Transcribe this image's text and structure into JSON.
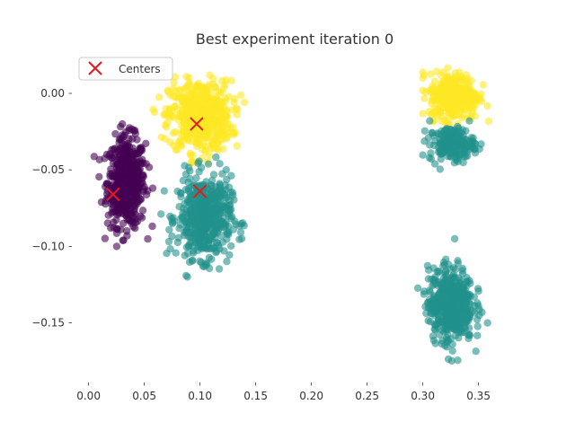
{
  "chart_data": {
    "type": "scatter",
    "title": "Best experiment iteration 0",
    "xlabel": "",
    "ylabel": "",
    "xlim": [
      -0.015,
      0.385
    ],
    "ylim": [
      -0.189,
      0.027
    ],
    "x_ticks": [
      0.0,
      0.05,
      0.1,
      0.15,
      0.2,
      0.25,
      0.3,
      0.35
    ],
    "x_tick_labels": [
      "0.00",
      "0.05",
      "0.10",
      "0.15",
      "0.20",
      "0.25",
      "0.30",
      "0.35"
    ],
    "y_ticks": [
      0.0,
      -0.05,
      -0.1,
      -0.15
    ],
    "y_tick_labels": [
      "0.00",
      "−0.05",
      "−0.10",
      "−0.15"
    ],
    "grid": false,
    "legend": {
      "placement": "top-left",
      "entries": [
        "Centers"
      ]
    },
    "clusters": [
      {
        "color": "#440154",
        "cx": 0.034,
        "cy": -0.058,
        "sx": 0.0085,
        "sy": 0.0145,
        "x_range": [
          0.005,
          0.065
        ],
        "y_range": [
          -0.1,
          -0.02
        ],
        "n": 520
      },
      {
        "color": "#fde725",
        "cx": 0.1,
        "cy": -0.015,
        "sx": 0.014,
        "sy": 0.0115,
        "x_range": [
          0.058,
          0.14
        ],
        "y_range": [
          -0.045,
          0.02
        ],
        "n": 520
      },
      {
        "color": "#21918c",
        "cx": 0.104,
        "cy": -0.081,
        "sx": 0.012,
        "sy": 0.0135,
        "x_range": [
          0.065,
          0.145
        ],
        "y_range": [
          -0.12,
          -0.038
        ],
        "n": 520
      },
      {
        "color": "#fde725",
        "cx": 0.328,
        "cy": -0.002,
        "sx": 0.011,
        "sy": 0.0075,
        "x_range": [
          0.3,
          0.36
        ],
        "y_range": [
          -0.02,
          0.025
        ],
        "n": 360
      },
      {
        "color": "#21918c",
        "cx": 0.326,
        "cy": -0.033,
        "sx": 0.01,
        "sy": 0.0055,
        "x_range": [
          0.3,
          0.358
        ],
        "y_range": [
          -0.053,
          -0.018
        ],
        "n": 200
      },
      {
        "color": "#21918c",
        "cx": 0.325,
        "cy": -0.138,
        "sx": 0.01,
        "sy": 0.012,
        "x_range": [
          0.292,
          0.362
        ],
        "y_range": [
          -0.178,
          -0.095
        ],
        "n": 520
      }
    ],
    "centers": [
      {
        "x": 0.022,
        "y": -0.066
      },
      {
        "x": 0.097,
        "y": -0.02
      },
      {
        "x": 0.1,
        "y": -0.064
      }
    ],
    "center_color": "#e41a1c"
  }
}
